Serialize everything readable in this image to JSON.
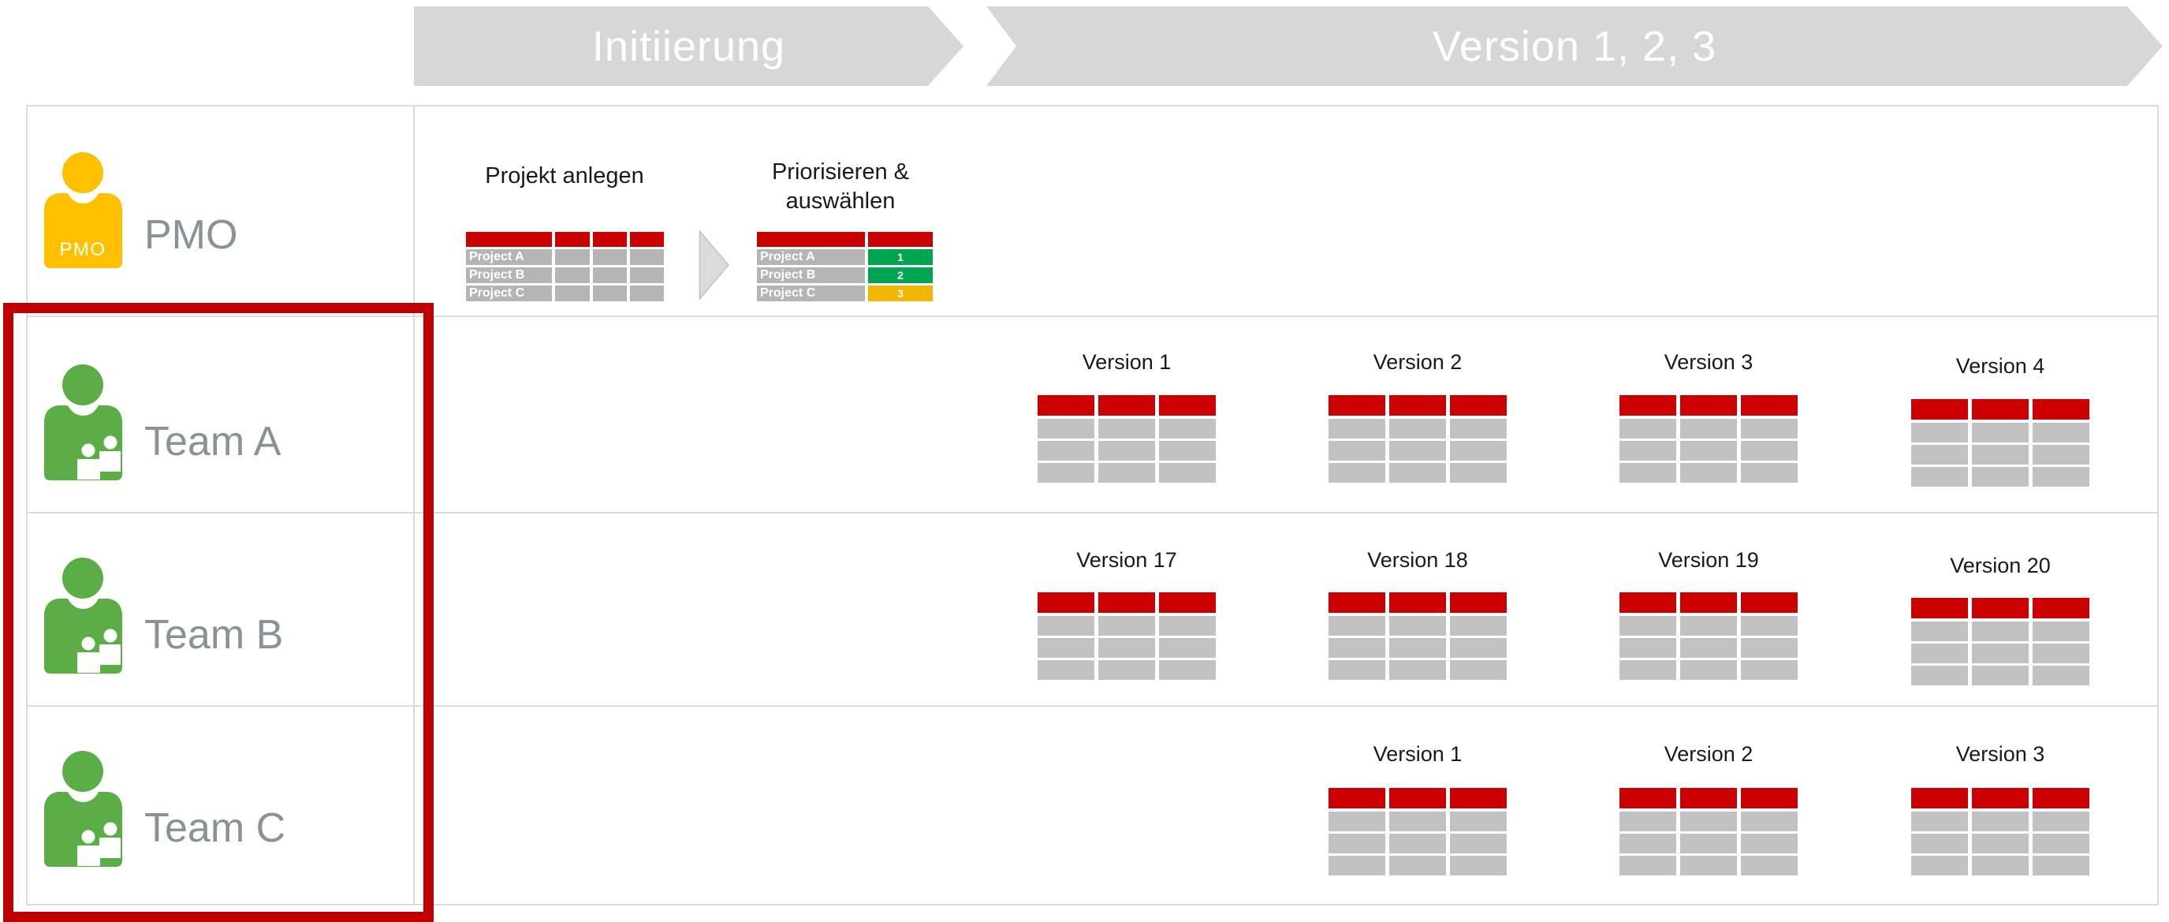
{
  "phases": [
    {
      "label": "Initiierung"
    },
    {
      "label": "Version 1, 2, 3"
    }
  ],
  "lanes": [
    {
      "label": "PMO",
      "icon": "pmo-person-icon",
      "icon_color": "#FFC000",
      "icon_badge": "PMO"
    },
    {
      "label": "Team A",
      "icon": "team-group-icon",
      "icon_color": "#5BAE45"
    },
    {
      "label": "Team B",
      "icon": "team-group-icon",
      "icon_color": "#5BAE45"
    },
    {
      "label": "Team C",
      "icon": "team-group-icon",
      "icon_color": "#5BAE45"
    }
  ],
  "pmo": {
    "create_step_label": "Projekt anlegen",
    "prioritize_step_label_line1": "Priorisieren &",
    "prioritize_step_label_line2": "auswählen",
    "projects": [
      "Project A",
      "Project B",
      "Project C"
    ],
    "priorities": [
      {
        "rank": "1",
        "color": "#00A451"
      },
      {
        "rank": "2",
        "color": "#00A451"
      },
      {
        "rank": "3",
        "color": "#EFB700"
      }
    ]
  },
  "version_groups": {
    "team_a": [
      "Version 1",
      "Version 2",
      "Version 3",
      "Version 4"
    ],
    "team_b": [
      "Version 17",
      "Version 18",
      "Version 19",
      "Version 20"
    ],
    "team_c": [
      "Version 1",
      "Version 2",
      "Version 3"
    ]
  },
  "colors": {
    "chevron_fill": "#D7D7D7",
    "chevron_text": "#FFFFFF",
    "grid_border": "#DBDBDB",
    "table_header_red": "#CC0000",
    "mini_cell_gray": "#B5B5B5",
    "version_cell_gray": "#C2C2C2",
    "lane_label_gray": "#8A9296",
    "pmo_yellow": "#FFC000",
    "team_green": "#5BAE45",
    "highlight_red": "#C00000"
  }
}
